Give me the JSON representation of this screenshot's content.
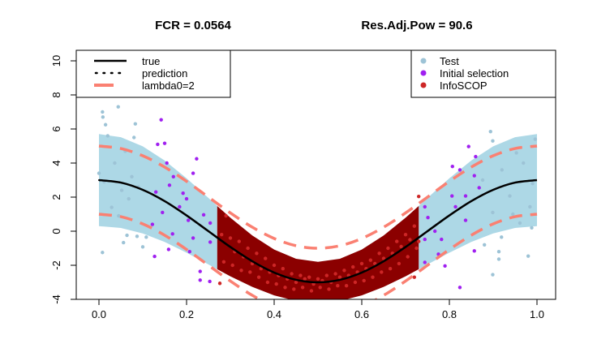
{
  "chart_data": {
    "type": "scatter",
    "title_left": "FCR =  0.0564",
    "title_right": "Res.Adj.Pow =  90.6",
    "xlabel": "",
    "ylabel": "",
    "xlim": [
      -0.052,
      1.043
    ],
    "ylim": [
      -4.0,
      10.6
    ],
    "x_ticks": [
      "0.0",
      "0.2",
      "0.4",
      "0.6",
      "0.8",
      "1.0"
    ],
    "x_tick_values": [
      0,
      0.2,
      0.4,
      0.6,
      0.8,
      1.0
    ],
    "y_ticks": [
      "-4",
      "-2",
      "0",
      "2",
      "4",
      "6",
      "8",
      "10"
    ],
    "y_tick_values": [
      -4,
      -2,
      0,
      2,
      4,
      6,
      8,
      10
    ],
    "grid": false,
    "colors": {
      "true": "#000000",
      "prediction": "#000000",
      "lambda": "#FA8072",
      "test": "#9DC3D6",
      "initial": "#A020F0",
      "infoscop": "#CD2626",
      "band_test": "#ADD8E6",
      "band_infoscop": "#8B0000"
    },
    "legend_left": {
      "position": "top-left",
      "entries": [
        {
          "label": "true",
          "style": "solid"
        },
        {
          "label": "prediction",
          "style": "dotted"
        },
        {
          "label": "lambda0=2",
          "style": "dashed"
        }
      ]
    },
    "legend_right": {
      "position": "top-right",
      "entries": [
        {
          "label": "Test"
        },
        {
          "label": "Initial selection"
        },
        {
          "label": "InfoSCOP"
        }
      ]
    },
    "lambda0": 2,
    "curve_x": [
      0,
      0.05,
      0.1,
      0.15,
      0.2,
      0.25,
      0.3,
      0.35,
      0.4,
      0.45,
      0.5,
      0.55,
      0.6,
      0.65,
      0.7,
      0.75,
      0.8,
      0.85,
      0.9,
      0.95,
      1.0
    ],
    "true_y": [
      3,
      2.853,
      2.427,
      1.763,
      0.927,
      0,
      -0.927,
      -1.763,
      -2.427,
      -2.853,
      -3,
      -2.853,
      -2.427,
      -1.763,
      -0.927,
      0,
      0.927,
      1.763,
      2.427,
      2.853,
      3
    ],
    "band_test": [
      {
        "x": [
          0,
          0.05,
          0.1,
          0.15,
          0.2,
          0.25,
          0.27
        ],
        "lower": [
          0.3,
          0.19,
          -0.13,
          -0.63,
          -1.26,
          -1.95,
          -2.23
        ],
        "upper": [
          5.7,
          5.52,
          4.98,
          4.15,
          3.11,
          1.95,
          1.48
        ]
      },
      {
        "x": [
          0.73,
          0.75,
          0.8,
          0.85,
          0.9,
          0.95,
          1.0
        ],
        "lower": [
          -2.23,
          -1.95,
          -1.26,
          -0.63,
          -0.13,
          0.19,
          0.3
        ],
        "upper": [
          1.48,
          1.95,
          3.11,
          4.15,
          4.98,
          5.52,
          5.7
        ]
      }
    ],
    "band_infoscop": {
      "x": [
        0.27,
        0.3,
        0.35,
        0.4,
        0.45,
        0.5,
        0.55,
        0.6,
        0.65,
        0.7,
        0.73
      ],
      "lower": [
        -2.23,
        -2.65,
        -3.27,
        -3.77,
        -4.09,
        -4.2,
        -4.09,
        -3.77,
        -3.27,
        -2.65,
        -2.23
      ],
      "upper": [
        1.48,
        0.79,
        -0.25,
        -1.08,
        -1.62,
        -1.8,
        -1.62,
        -1.08,
        -0.25,
        0.79,
        1.48
      ]
    },
    "series": [
      {
        "name": "Test",
        "points": [
          [
            0.008,
            7.0
          ],
          [
            0.009,
            6.7
          ],
          [
            0.015,
            6.25
          ],
          [
            0.044,
            7.3
          ],
          [
            0.083,
            6.3
          ],
          [
            0.08,
            5.5
          ],
          [
            0.008,
            -1.25
          ],
          [
            0.056,
            -0.67
          ],
          [
            0.064,
            -0.24
          ],
          [
            0.087,
            -0.3
          ],
          [
            0.1,
            -0.92
          ],
          [
            0.108,
            -0.35
          ],
          [
            0.0,
            3.4
          ],
          [
            0.036,
            4.0
          ],
          [
            0.075,
            3.2
          ],
          [
            0.052,
            2.4
          ],
          [
            0.029,
            1.4
          ],
          [
            0.068,
            1.9
          ],
          [
            0.02,
            5.6
          ],
          [
            0.06,
            4.7
          ],
          [
            0.09,
            2.6
          ],
          [
            0.012,
            2.9
          ],
          [
            0.045,
            0.9
          ],
          [
            0.894,
            5.85
          ],
          [
            0.899,
            5.3
          ],
          [
            0.919,
            -0.35
          ],
          [
            0.913,
            -1.2
          ],
          [
            0.913,
            -1.64
          ],
          [
            0.899,
            -2.55
          ],
          [
            0.98,
            -1.46
          ],
          [
            0.88,
            -0.8
          ],
          [
            0.988,
            0.2
          ],
          [
            0.953,
            4.6
          ],
          [
            0.969,
            4.0
          ],
          [
            0.938,
            2.07
          ],
          [
            0.984,
            1.43
          ],
          [
            0.899,
            1.1
          ],
          [
            0.876,
            3.0
          ],
          [
            0.996,
            5.4
          ],
          [
            0.961,
            0.48
          ],
          [
            0.92,
            3.6
          ],
          [
            0.99,
            2.8
          ],
          [
            0.945,
            1.0
          ]
        ]
      },
      {
        "name": "Initial selection",
        "points": [
          [
            0.142,
            6.54
          ],
          [
            0.134,
            5.1
          ],
          [
            0.15,
            5.16
          ],
          [
            0.223,
            4.25
          ],
          [
            0.215,
            3.4
          ],
          [
            0.155,
            4.0
          ],
          [
            0.13,
            2.3
          ],
          [
            0.192,
            2.23
          ],
          [
            0.127,
            -1.48
          ],
          [
            0.159,
            -1.07
          ],
          [
            0.231,
            -2.36
          ],
          [
            0.231,
            -2.87
          ],
          [
            0.253,
            -2.95
          ],
          [
            0.207,
            -1.2
          ],
          [
            0.168,
            -0.16
          ],
          [
            0.215,
            -0.4
          ],
          [
            0.239,
            0.96
          ],
          [
            0.184,
            1.43
          ],
          [
            0.145,
            1.1
          ],
          [
            0.122,
            0.4
          ],
          [
            0.204,
            0.64
          ],
          [
            0.254,
            0.48
          ],
          [
            0.254,
            -0.64
          ],
          [
            0.161,
            2.7
          ],
          [
            0.17,
            3.2
          ],
          [
            0.2,
            1.9
          ],
          [
            0.844,
            4.97
          ],
          [
            0.824,
            3.6
          ],
          [
            0.86,
            4.38
          ],
          [
            0.807,
            3.8
          ],
          [
            0.857,
            3.26
          ],
          [
            0.79,
            -2.04
          ],
          [
            0.824,
            -3.3
          ],
          [
            0.857,
            -1.16
          ],
          [
            0.775,
            -1.35
          ],
          [
            0.744,
            -1.83
          ],
          [
            0.744,
            1.43
          ],
          [
            0.806,
            2.07
          ],
          [
            0.837,
            0.64
          ],
          [
            0.782,
            -0.48
          ],
          [
            0.767,
            0
          ],
          [
            0.744,
            -0.48
          ],
          [
            0.868,
            2.55
          ],
          [
            0.814,
            1.43
          ],
          [
            0.837,
            2.07
          ],
          [
            0.751,
            0.8
          ]
        ]
      },
      {
        "name": "InfoSCOP",
        "points": [
          [
            0.28,
            -0.2
          ],
          [
            0.285,
            -1.8
          ],
          [
            0.29,
            0.9
          ],
          [
            0.3,
            -0.4
          ],
          [
            0.305,
            -2.0
          ],
          [
            0.31,
            -1.2
          ],
          [
            0.32,
            -0.6
          ],
          [
            0.325,
            -2.3
          ],
          [
            0.33,
            -1.5
          ],
          [
            0.34,
            -1.0
          ],
          [
            0.345,
            -2.4
          ],
          [
            0.35,
            -1.9
          ],
          [
            0.36,
            -1.3
          ],
          [
            0.365,
            -2.7
          ],
          [
            0.37,
            -2.2
          ],
          [
            0.38,
            -1.6
          ],
          [
            0.385,
            -3.0
          ],
          [
            0.39,
            -2.4
          ],
          [
            0.4,
            -2.0
          ],
          [
            0.405,
            -3.1
          ],
          [
            0.41,
            -2.6
          ],
          [
            0.42,
            -2.2
          ],
          [
            0.425,
            -3.3
          ],
          [
            0.43,
            -2.8
          ],
          [
            0.44,
            -2.5
          ],
          [
            0.445,
            -3.4
          ],
          [
            0.45,
            -3.0
          ],
          [
            0.46,
            -2.6
          ],
          [
            0.465,
            -3.3
          ],
          [
            0.47,
            -2.8
          ],
          [
            0.48,
            -2.7
          ],
          [
            0.485,
            -3.5
          ],
          [
            0.49,
            -3.1
          ],
          [
            0.5,
            -2.8
          ],
          [
            0.505,
            -3.3
          ],
          [
            0.51,
            -2.9
          ],
          [
            0.52,
            -2.6
          ],
          [
            0.525,
            -3.4
          ],
          [
            0.53,
            -3.0
          ],
          [
            0.54,
            -2.5
          ],
          [
            0.545,
            -3.2
          ],
          [
            0.55,
            -2.7
          ],
          [
            0.56,
            -2.3
          ],
          [
            0.565,
            -3.2
          ],
          [
            0.57,
            -2.6
          ],
          [
            0.58,
            -2.1
          ],
          [
            0.585,
            -3.0
          ],
          [
            0.59,
            -2.4
          ],
          [
            0.6,
            -1.9
          ],
          [
            0.605,
            -2.9
          ],
          [
            0.61,
            -2.2
          ],
          [
            0.62,
            -1.7
          ],
          [
            0.625,
            -2.7
          ],
          [
            0.63,
            -1.9
          ],
          [
            0.64,
            -1.3
          ],
          [
            0.645,
            -2.4
          ],
          [
            0.65,
            -1.6
          ],
          [
            0.66,
            -1.0
          ],
          [
            0.665,
            -2.2
          ],
          [
            0.67,
            -1.3
          ],
          [
            0.68,
            -0.6
          ],
          [
            0.685,
            -1.9
          ],
          [
            0.69,
            -0.9
          ],
          [
            0.7,
            -0.2
          ],
          [
            0.705,
            -1.5
          ],
          [
            0.71,
            -0.5
          ],
          [
            0.72,
            0.3
          ],
          [
            0.725,
            -1.0
          ],
          [
            0.73,
            -0.6
          ],
          [
            0.73,
            2.04
          ],
          [
            0.72,
            -2.7
          ],
          [
            0.276,
            -3.06
          ]
        ]
      }
    ]
  }
}
